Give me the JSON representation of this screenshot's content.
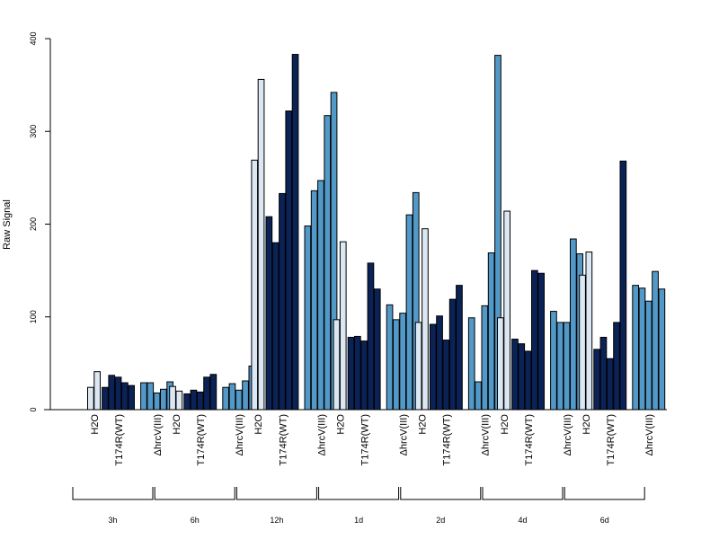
{
  "colors": {
    "h2o": "#dbe7f2",
    "wt": "#0b2256",
    "mut": "#5299c8"
  },
  "chart_data": {
    "type": "bar",
    "title": "",
    "xlabel": "",
    "ylabel": "Raw Signal",
    "ylim": [
      0,
      400
    ],
    "yticks": [
      0,
      100,
      200,
      300,
      400
    ],
    "grid": false,
    "group_labels": [
      "H2O",
      "T174R(WT)",
      "ΔhrcV(III)"
    ],
    "timepoints": [
      {
        "label": "3h",
        "series": [
          {
            "group": "h2o",
            "values": [
              24,
              41
            ]
          },
          {
            "group": "wt",
            "values": [
              24,
              37,
              35,
              29,
              26
            ]
          },
          {
            "group": "mut",
            "values": [
              29,
              29,
              18,
              22,
              30
            ]
          }
        ]
      },
      {
        "label": "6h",
        "series": [
          {
            "group": "h2o",
            "values": [
              25,
              20
            ]
          },
          {
            "group": "wt",
            "values": [
              17,
              21,
              19,
              35,
              38
            ]
          },
          {
            "group": "mut",
            "values": [
              24,
              28,
              21,
              31,
              47
            ]
          }
        ]
      },
      {
        "label": "12h",
        "series": [
          {
            "group": "h2o",
            "values": [
              269,
              356
            ]
          },
          {
            "group": "wt",
            "values": [
              208,
              180,
              233,
              322,
              383
            ]
          },
          {
            "group": "mut",
            "values": [
              198,
              236,
              247,
              317,
              342
            ]
          }
        ]
      },
      {
        "label": "1d",
        "series": [
          {
            "group": "h2o",
            "values": [
              97,
              181
            ]
          },
          {
            "group": "wt",
            "values": [
              78,
              79,
              74,
              158,
              130
            ]
          },
          {
            "group": "mut",
            "values": [
              113,
              97,
              104,
              210,
              234
            ]
          }
        ]
      },
      {
        "label": "2d",
        "series": [
          {
            "group": "h2o",
            "values": [
              94,
              195
            ]
          },
          {
            "group": "wt",
            "values": [
              92,
              101,
              75,
              119,
              134
            ]
          },
          {
            "group": "mut",
            "values": [
              99,
              30,
              112,
              169,
              382
            ]
          }
        ]
      },
      {
        "label": "4d",
        "series": [
          {
            "group": "h2o",
            "values": [
              99,
              214
            ]
          },
          {
            "group": "wt",
            "values": [
              76,
              71,
              63,
              150,
              147
            ]
          },
          {
            "group": "mut",
            "values": [
              106,
              94,
              94,
              184,
              168
            ]
          }
        ]
      },
      {
        "label": "6d",
        "series": [
          {
            "group": "h2o",
            "values": [
              145,
              170
            ]
          },
          {
            "group": "wt",
            "values": [
              65,
              78,
              55,
              94,
              268
            ]
          },
          {
            "group": "mut",
            "values": [
              134,
              131,
              117,
              149,
              130
            ]
          }
        ]
      }
    ]
  }
}
